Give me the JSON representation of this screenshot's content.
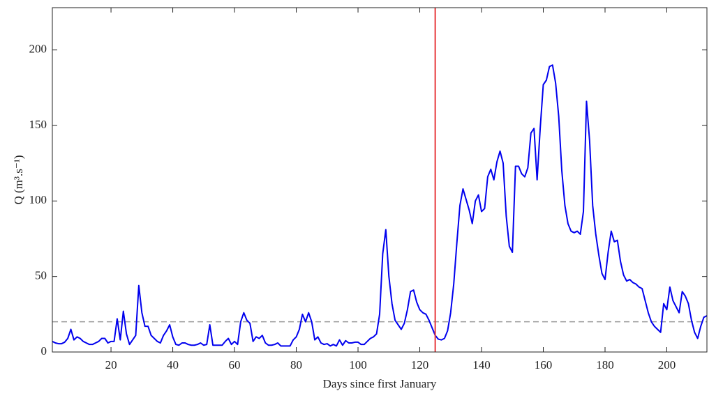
{
  "chart_data": {
    "type": "line",
    "xlabel": "Days since first January",
    "ylabel": "Q (m³.s⁻¹)",
    "xlim": [
      1,
      213
    ],
    "ylim": [
      0,
      228
    ],
    "xticks": [
      20,
      40,
      60,
      80,
      100,
      120,
      140,
      160,
      180,
      200
    ],
    "yticks": [
      0,
      50,
      100,
      150,
      200
    ],
    "vline": {
      "x": 125,
      "color": "#e8383b"
    },
    "hline": {
      "y": 20,
      "color": "#999999"
    },
    "x": [
      1,
      2,
      3,
      4,
      5,
      6,
      7,
      8,
      9,
      10,
      11,
      12,
      13,
      14,
      15,
      16,
      17,
      18,
      19,
      20,
      21,
      22,
      23,
      24,
      25,
      26,
      27,
      28,
      29,
      30,
      31,
      32,
      33,
      34,
      35,
      36,
      37,
      38,
      39,
      40,
      41,
      42,
      43,
      44,
      45,
      46,
      47,
      48,
      49,
      50,
      51,
      52,
      53,
      54,
      55,
      56,
      57,
      58,
      59,
      60,
      61,
      62,
      63,
      64,
      65,
      66,
      67,
      68,
      69,
      70,
      71,
      72,
      73,
      74,
      75,
      76,
      77,
      78,
      79,
      80,
      81,
      82,
      83,
      84,
      85,
      86,
      87,
      88,
      89,
      90,
      91,
      92,
      93,
      94,
      95,
      96,
      97,
      98,
      99,
      100,
      101,
      102,
      103,
      104,
      105,
      106,
      107,
      108,
      109,
      110,
      111,
      112,
      113,
      114,
      115,
      116,
      117,
      118,
      119,
      120,
      121,
      122,
      123,
      124,
      125,
      126,
      127,
      128,
      129,
      130,
      131,
      132,
      133,
      134,
      135,
      136,
      137,
      138,
      139,
      140,
      141,
      142,
      143,
      144,
      145,
      146,
      147,
      148,
      149,
      150,
      151,
      152,
      153,
      154,
      155,
      156,
      157,
      158,
      159,
      160,
      161,
      162,
      163,
      164,
      165,
      166,
      167,
      168,
      169,
      170,
      171,
      172,
      173,
      174,
      175,
      176,
      177,
      178,
      179,
      180,
      181,
      182,
      183,
      184,
      185,
      186,
      187,
      188,
      189,
      190,
      191,
      192,
      193,
      194,
      195,
      196,
      197,
      198,
      199,
      200,
      201,
      202,
      203,
      204,
      205,
      206,
      207,
      208,
      209,
      210,
      211,
      212,
      213
    ],
    "series": [
      {
        "name": "Q",
        "color": "#0000ee",
        "values": [
          7,
          6,
          5.5,
          5.5,
          6.5,
          9,
          15,
          8,
          10,
          9,
          7,
          6,
          5,
          5,
          6,
          7,
          9,
          9,
          6,
          7,
          7,
          22,
          8,
          27,
          12,
          5,
          8,
          11,
          44,
          26,
          17,
          17,
          11,
          9,
          7,
          6,
          11,
          14,
          18,
          10,
          5,
          4.5,
          6,
          6,
          5,
          4.5,
          4.5,
          5,
          6,
          4.5,
          5,
          18,
          4.5,
          4.5,
          4.5,
          4.5,
          7,
          9,
          5,
          7,
          5,
          20,
          26,
          21,
          19,
          7,
          10,
          9,
          11,
          6,
          4.5,
          4.5,
          5,
          6,
          4,
          4,
          4,
          4,
          8,
          10,
          15,
          25,
          20,
          26,
          20,
          8,
          10,
          6,
          5,
          5.5,
          4,
          5,
          4,
          8,
          4.5,
          7.5,
          6,
          6,
          6.5,
          6.5,
          5,
          5,
          7,
          9,
          10,
          12,
          25,
          65,
          81,
          50,
          32,
          21,
          18,
          15,
          19,
          28,
          40,
          41,
          33,
          28,
          26,
          25,
          21,
          16,
          11,
          8.5,
          8,
          9,
          14,
          26,
          45,
          72,
          97,
          108,
          101,
          94,
          85,
          100,
          104,
          93,
          95,
          116,
          121,
          114,
          126,
          133,
          125,
          90,
          70,
          66,
          123,
          123,
          118,
          116,
          122,
          145,
          148,
          114,
          148,
          177,
          180,
          189,
          190,
          178,
          156,
          120,
          97,
          85,
          80,
          79,
          80,
          78,
          93,
          166,
          140,
          97,
          78,
          64,
          52,
          48,
          66,
          80,
          73,
          74,
          60,
          51,
          47,
          48,
          46,
          45,
          43,
          42,
          34,
          26,
          20,
          17,
          15,
          13,
          32,
          28,
          43,
          34,
          30,
          26,
          40,
          37,
          32,
          21,
          13,
          9,
          17,
          23,
          24
        ]
      }
    ]
  }
}
